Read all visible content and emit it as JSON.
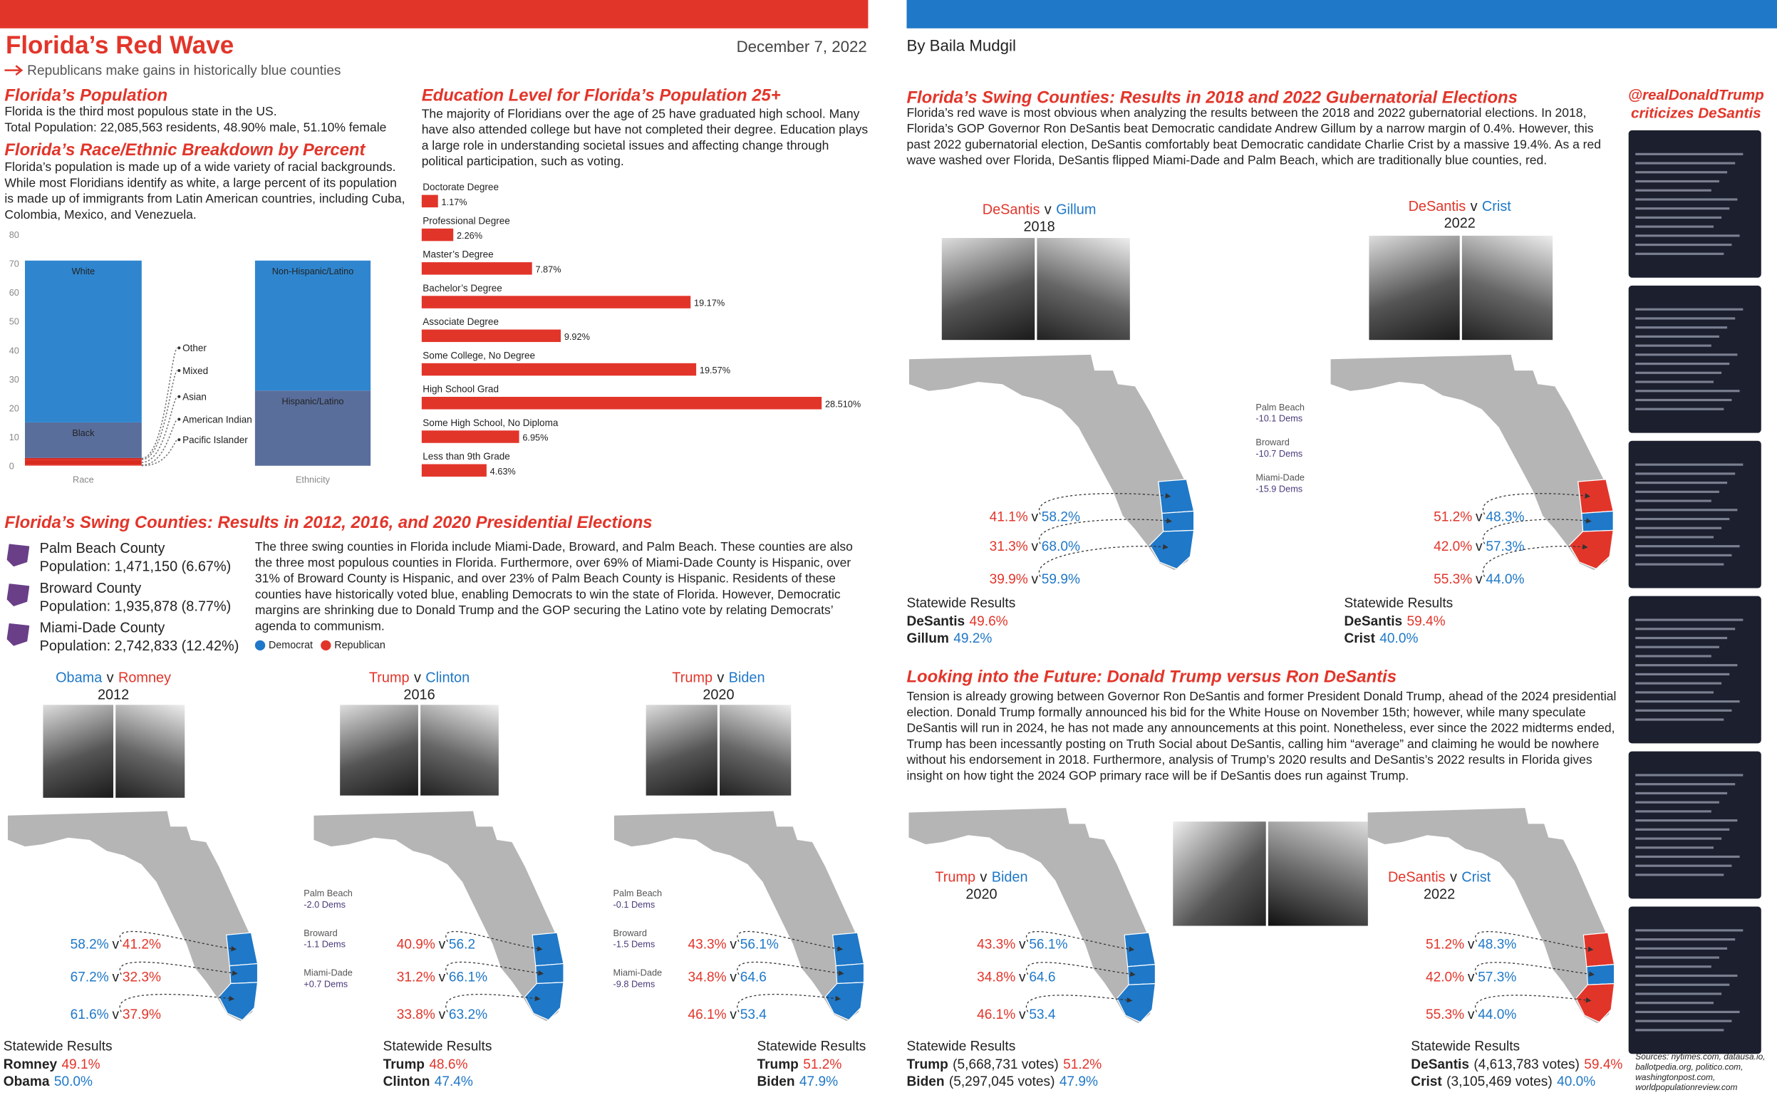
{
  "header": {
    "title": "Florida’s Red Wave",
    "subtitle": "Republicans make gains in historically blue counties",
    "date": "December 7, 2022",
    "byline": "By Baila Mudgil"
  },
  "colors": {
    "dem": "#1f78c8",
    "rep": "#e2352a"
  },
  "sep": "v",
  "population": {
    "title": "Florida’s Population",
    "lines": [
      "Florida is the third most populous state in the US.",
      "Total Population: 22,085,563 residents, 48.90% male, 51.10% female"
    ]
  },
  "chart_data": [
    {
      "type": "bar",
      "stacked": true,
      "title": "Florida’s Race/Ethnic Breakdown by Percent",
      "text": "Florida’s population is made up of a wide variety of racial backgrounds. While most Floridians identify as white, a large percent of its population is made up of immigrants from Latin American countries, including Cuba, Colombia, Mexico, and Venezuela.",
      "categories": [
        "Race",
        "Ethnicity"
      ],
      "series": [
        {
          "name": "Pacific Islander",
          "color": "#f0574b",
          "values": [
            0.1,
            null
          ]
        },
        {
          "name": "American Indian",
          "color": "#e2352a",
          "values": [
            0.3,
            null
          ]
        },
        {
          "name": "Asian",
          "color": "#d92a20",
          "values": [
            1.5,
            null
          ]
        },
        {
          "name": "Mixed",
          "color": "#e2352a",
          "values": [
            0.5,
            null
          ]
        },
        {
          "name": "Other",
          "color": "#c9261d",
          "values": [
            0.3,
            null
          ]
        },
        {
          "name": "Black",
          "color": "#5a6e9c",
          "values": [
            12.3,
            null
          ]
        },
        {
          "name": "White",
          "color": "#2f86cf",
          "values": [
            56.0,
            null
          ]
        },
        {
          "name": "Hispanic/Latino",
          "color": "#5a6e9c",
          "values": [
            null,
            26.0
          ]
        },
        {
          "name": "Non-Hispanic/Latino",
          "color": "#2f86cf",
          "values": [
            null,
            45.0
          ]
        }
      ],
      "ylim": [
        0,
        80
      ],
      "yticks": [
        0,
        10,
        20,
        30,
        40,
        50,
        60,
        70,
        80
      ]
    },
    {
      "type": "bar",
      "orientation": "horizontal",
      "title": "Education Level for Florida’s Population 25+",
      "text": "The majority of Floridians over the age of 25 have graduated high school. Many have also attended college but have not completed their degree. Education plays a large role in understanding societal issues and affecting change through political participation, such as voting.",
      "color": "#e2352a",
      "categories": [
        "Doctorate Degree",
        "Professional Degree",
        "Master’s Degree",
        "Bachelor’s Degree",
        "Associate Degree",
        "Some College, No Degree",
        "High School Grad",
        "Some High School, No Diploma",
        "Less than 9th Grade"
      ],
      "values": [
        1.17,
        2.26,
        7.87,
        19.17,
        9.92,
        19.57,
        28.51,
        6.95,
        4.63
      ],
      "value_labels": [
        "1.17%",
        "2.26%",
        "7.87%",
        "19.17%",
        "9.92%",
        "19.57%",
        "28.510%",
        "6.95%",
        "4.63%"
      ]
    }
  ],
  "presidential": {
    "title": "Florida’s Swing Counties: Results in 2012, 2016, and 2020 Presidential Elections",
    "counties": [
      {
        "name": "Palm Beach County",
        "population": "Population: 1,471,150 (6.67%)"
      },
      {
        "name": "Broward County",
        "population": "Population: 1,935,878 (8.77%)"
      },
      {
        "name": "Miami-Dade County",
        "population": "Population: 2,742,833 (12.42%)"
      }
    ],
    "text": "The three swing counties in Florida include Miami-Dade, Broward, and Palm Beach.  These counties are also the three most populous counties in Florida.  Furthermore, over 69% of Miami-Dade County is Hispanic, over 31% of Broward County is Hispanic, and over 23% of Palm Beach County is Hispanic. Residents of these counties have historically voted blue, enabling Democrats to win the state of Florida.  However, Democratic margins are shrinking due to Donald Trump and the GOP securing the Latino vote by relating Democrats’ agenda to communism.",
    "legend": [
      {
        "name": "Democrat",
        "party": "dem"
      },
      {
        "name": "Republican",
        "party": "rep"
      }
    ]
  },
  "statewide_label": "Statewide Results",
  "panels": [
    {
      "first": "Obama",
      "first_party": "dem",
      "second": "Romney",
      "second_party": "rep",
      "year": "2012",
      "map": [
        "dem",
        "dem",
        "dem"
      ],
      "rows": [
        {
          "left": "58.2%",
          "left_party": "dem",
          "right": "41.2%",
          "right_party": "rep"
        },
        {
          "left": "67.2%",
          "left_party": "dem",
          "right": "32.3%",
          "right_party": "rep"
        },
        {
          "left": "61.6%",
          "left_party": "dem",
          "right": "37.9%",
          "right_party": "rep"
        }
      ],
      "statewide": [
        {
          "name": "Romney",
          "pct": "49.1%",
          "party": "rep"
        },
        {
          "name": "Obama",
          "pct": "50.0%",
          "party": "dem"
        }
      ]
    },
    {
      "first": "Trump",
      "first_party": "rep",
      "second": "Clinton",
      "second_party": "dem",
      "year": "2016",
      "map": [
        "dem",
        "dem",
        "dem"
      ],
      "rows": [
        {
          "left": "40.9%",
          "left_party": "rep",
          "right": "56.2",
          "right_party": "dem"
        },
        {
          "left": "31.2%",
          "left_party": "rep",
          "right": "66.1%",
          "right_party": "dem"
        },
        {
          "left": "33.8%",
          "left_party": "rep",
          "right": "63.2%",
          "right_party": "dem"
        }
      ],
      "shifts": [
        {
          "county": "Palm Beach",
          "change": "-2.0 Dems"
        },
        {
          "county": "Broward",
          "change": "-1.1 Dems"
        },
        {
          "county": "Miami-Dade",
          "change": "+0.7 Dems"
        }
      ],
      "statewide": [
        {
          "name": "Trump",
          "pct": "48.6%",
          "party": "rep"
        },
        {
          "name": "Clinton",
          "pct": "47.4%",
          "party": "dem"
        }
      ]
    },
    {
      "first": "Trump",
      "first_party": "rep",
      "second": "Biden",
      "second_party": "dem",
      "year": "2020",
      "map": [
        "dem",
        "dem",
        "dem"
      ],
      "rows": [
        {
          "left": "43.3%",
          "left_party": "rep",
          "right": "56.1%",
          "right_party": "dem"
        },
        {
          "left": "34.8%",
          "left_party": "rep",
          "right": "64.6",
          "right_party": "dem"
        },
        {
          "left": "46.1%",
          "left_party": "rep",
          "right": "53.4",
          "right_party": "dem"
        }
      ],
      "shifts": [
        {
          "county": "Palm Beach",
          "change": "-0.1 Dems"
        },
        {
          "county": "Broward",
          "change": "-1.5 Dems"
        },
        {
          "county": "Miami-Dade",
          "change": "-9.8 Dems"
        }
      ],
      "statewide": [
        {
          "name": "Trump",
          "pct": "51.2%",
          "party": "rep"
        },
        {
          "name": "Biden",
          "pct": "47.9%",
          "party": "dem"
        }
      ]
    },
    {
      "first": "DeSantis",
      "first_party": "rep",
      "second": "Gillum",
      "second_party": "dem",
      "year": "2018",
      "map": [
        "dem",
        "dem",
        "dem"
      ],
      "rows": [
        {
          "left": "41.1%",
          "left_party": "rep",
          "right": "58.2%",
          "right_party": "dem"
        },
        {
          "left": "31.3%",
          "left_party": "rep",
          "right": "68.0%",
          "right_party": "dem"
        },
        {
          "left": "39.9%",
          "left_party": "rep",
          "right": "59.9%",
          "right_party": "dem"
        }
      ],
      "statewide": [
        {
          "name": "DeSantis",
          "pct": "49.6%",
          "party": "rep"
        },
        {
          "name": "Gillum",
          "pct": "49.2%",
          "party": "dem"
        }
      ]
    },
    {
      "first": "DeSantis",
      "first_party": "rep",
      "second": "Crist",
      "second_party": "dem",
      "year": "2022",
      "map": [
        "rep",
        "dem",
        "rep"
      ],
      "rows": [
        {
          "left": "51.2%",
          "left_party": "rep",
          "right": "48.3%",
          "right_party": "dem"
        },
        {
          "left": "42.0%",
          "left_party": "rep",
          "right": "57.3%",
          "right_party": "dem"
        },
        {
          "left": "55.3%",
          "left_party": "rep",
          "right": "44.0%",
          "right_party": "dem"
        }
      ],
      "shifts": [
        {
          "county": "Palm Beach",
          "change": "-10.1 Dems"
        },
        {
          "county": "Broward",
          "change": "-10.7 Dems"
        },
        {
          "county": "Miami-Dade",
          "change": "-15.9 Dems"
        }
      ],
      "statewide": [
        {
          "name": "DeSantis",
          "pct": "59.4%",
          "party": "rep"
        },
        {
          "name": "Crist",
          "pct": "40.0%",
          "party": "dem"
        }
      ]
    },
    {
      "first": "Trump",
      "first_party": "rep",
      "second": "Biden",
      "second_party": "dem",
      "year": "2020",
      "map": [
        "dem",
        "dem",
        "dem"
      ],
      "rows": [
        {
          "left": "43.3%",
          "left_party": "rep",
          "right": "56.1%",
          "right_party": "dem"
        },
        {
          "left": "34.8%",
          "left_party": "rep",
          "right": "64.6",
          "right_party": "dem"
        },
        {
          "left": "46.1%",
          "left_party": "rep",
          "right": "53.4",
          "right_party": "dem"
        }
      ],
      "statewide": [
        {
          "name": "Trump",
          "votes": "(5,668,731 votes)",
          "pct": "51.2%",
          "party": "rep"
        },
        {
          "name": "Biden",
          "votes": "(5,297,045 votes)",
          "pct": "47.9%",
          "party": "dem"
        }
      ]
    },
    {
      "first": "DeSantis",
      "first_party": "rep",
      "second": "Crist",
      "second_party": "dem",
      "year": "2022",
      "map": [
        "rep",
        "dem",
        "rep"
      ],
      "rows": [
        {
          "left": "51.2%",
          "left_party": "rep",
          "right": "48.3%",
          "right_party": "dem"
        },
        {
          "left": "42.0%",
          "left_party": "rep",
          "right": "57.3%",
          "right_party": "dem"
        },
        {
          "left": "55.3%",
          "left_party": "rep",
          "right": "44.0%",
          "right_party": "dem"
        }
      ],
      "statewide": [
        {
          "name": "DeSantis",
          "votes": "(4,613,783 votes)",
          "pct": "59.4%",
          "party": "rep"
        },
        {
          "name": "Crist",
          "votes": "(3,105,469 votes)",
          "pct": "40.0%",
          "party": "dem"
        }
      ]
    }
  ],
  "gubernatorial": {
    "title": "Florida’s Swing Counties: Results in 2018 and 2022 Gubernatorial Elections",
    "text": "Florida’s red wave is most obvious when analyzing the results between the 2018 and 2022 gubernatorial elections. In 2018, Florida’s GOP Governor Ron DeSantis beat Democratic candidate Andrew Gillum by a narrow margin of 0.4%. However, this past 2022 gubernatorial election, DeSantis comfortably beat Democratic candidate Charlie Crist by a massive 19.4%. As a red wave washed over Florida, DeSantis flipped Miami-Dade and Palm Beach, which are traditionally blue counties, red."
  },
  "future": {
    "title": "Looking into the Future: Donald Trump versus Ron DeSantis",
    "text": "Tension is already growing between Governor Ron DeSantis and former President Donald Trump, ahead of the 2024 presidential election. Donald Trump formally announced his bid for the White House on November 15th; however, while many speculate DeSantis will run in 2024, he has not made any announcements at this point.  Nonetheless, ever since the 2022 midterms ended, Trump has been incessantly posting on Truth Social about DeSantis, calling him “average” and claiming he would be nowhere without his endorsement in 2018. Furthermore, analysis of Trump’s 2020 results and DeSantis’s 2022 results in Florida gives insight on how tight the 2024 GOP primary race will be if DeSantis does run against Trump."
  },
  "tweets": {
    "title": "@realDonaldTrump criticizes DeSantis"
  },
  "sources": "Sources: nytimes.com, datausa.io, ballotpedia.org, politico.com, washingtonpost.com, worldpopulationreview.com"
}
